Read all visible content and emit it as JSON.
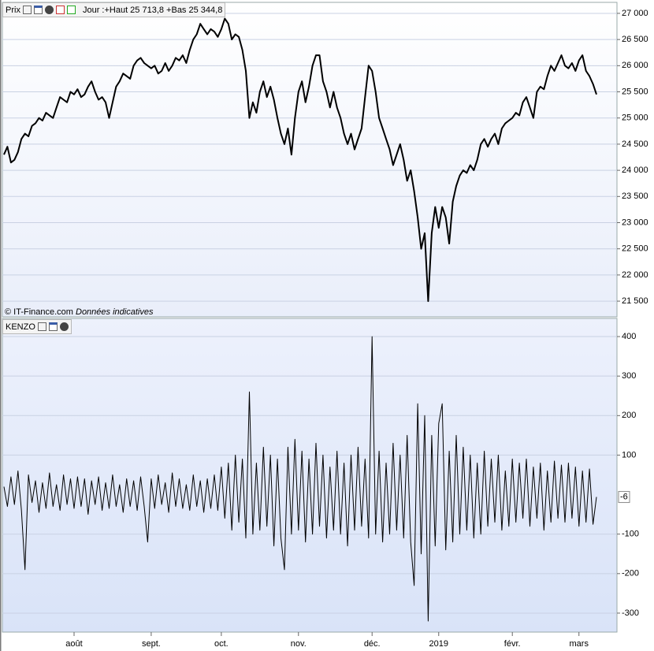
{
  "chart_data": [
    {
      "type": "line",
      "title": "Prix",
      "subtitle": "Jour :+Haut 25 713,8 +Bas 25 344,8",
      "annotations": [
        "© IT-Finance.com",
        "Données indicatives"
      ],
      "ylim": [
        21200,
        27210
      ],
      "yticks": [
        {
          "value": 27000,
          "label": "27 000"
        },
        {
          "value": 26500,
          "label": "26 500"
        },
        {
          "value": 26000,
          "label": "26 000"
        },
        {
          "value": 25500,
          "label": "25 500"
        },
        {
          "value": 25000,
          "label": "25 000"
        },
        {
          "value": 24500,
          "label": "24 500"
        },
        {
          "value": 24000,
          "label": "24 000"
        },
        {
          "value": 23500,
          "label": "23 500"
        },
        {
          "value": 23000,
          "label": "23 000"
        },
        {
          "value": 22500,
          "label": "22 500"
        },
        {
          "value": 22000,
          "label": "22 000"
        },
        {
          "value": 21500,
          "label": "21 500"
        }
      ],
      "grid": true,
      "series": [
        {
          "color": "#000000",
          "values": [
            24300,
            24450,
            24150,
            24200,
            24350,
            24600,
            24700,
            24650,
            24850,
            24900,
            25000,
            24950,
            25100,
            25050,
            25000,
            25200,
            25400,
            25350,
            25300,
            25500,
            25450,
            25550,
            25400,
            25450,
            25600,
            25700,
            25500,
            25350,
            25400,
            25300,
            25000,
            25300,
            25600,
            25700,
            25850,
            25800,
            25750,
            26000,
            26100,
            26150,
            26050,
            26000,
            25950,
            26000,
            25850,
            25900,
            26050,
            25900,
            26000,
            26150,
            26100,
            26200,
            26050,
            26300,
            26500,
            26600,
            26800,
            26700,
            26600,
            26700,
            26650,
            26550,
            26700,
            26900,
            26800,
            26500,
            26600,
            26550,
            26300,
            25900,
            25000,
            25300,
            25100,
            25500,
            25700,
            25400,
            25600,
            25350,
            25000,
            24700,
            24500,
            24800,
            24300,
            25000,
            25500,
            25700,
            25300,
            25600,
            26000,
            26200,
            26200,
            25700,
            25500,
            25200,
            25500,
            25200,
            25000,
            24700,
            24500,
            24700,
            24400,
            24600,
            24800,
            25400,
            26000,
            25900,
            25500,
            25000,
            24800,
            24600,
            24400,
            24100,
            24300,
            24500,
            24200,
            23800,
            24000,
            23600,
            23100,
            22500,
            22800,
            21500,
            22800,
            23300,
            22900,
            23300,
            23100,
            22600,
            23400,
            23700,
            23900,
            24000,
            23950,
            24100,
            24000,
            24200,
            24500,
            24600,
            24450,
            24600,
            24700,
            24500,
            24800,
            24900,
            24950,
            25000,
            25100,
            25050,
            25300,
            25400,
            25200,
            25000,
            25500,
            25600,
            25550,
            25800,
            26000,
            25900,
            26050,
            26200,
            26000,
            25950,
            26050,
            25900,
            26100,
            26200,
            25900,
            25800,
            25650,
            25450
          ]
        }
      ]
    },
    {
      "type": "line",
      "title": "KENZO",
      "ylim": [
        -348,
        446
      ],
      "yticks": [
        400,
        300,
        200,
        100,
        -100,
        -200,
        -300
      ],
      "grid": true,
      "categories": [
        null,
        null,
        null,
        null,
        null,
        null,
        null,
        null,
        null,
        null,
        null,
        null,
        null,
        null,
        null,
        null,
        null,
        null,
        null,
        null,
        "août",
        null,
        null,
        null,
        null,
        null,
        null,
        null,
        null,
        null,
        null,
        null,
        null,
        null,
        null,
        null,
        null,
        null,
        null,
        null,
        null,
        null,
        "sept.",
        null,
        null,
        null,
        null,
        null,
        null,
        null,
        null,
        null,
        null,
        null,
        null,
        null,
        null,
        null,
        null,
        null,
        null,
        null,
        "oct.",
        null,
        null,
        null,
        null,
        null,
        null,
        null,
        null,
        null,
        null,
        null,
        null,
        null,
        null,
        null,
        null,
        null,
        null,
        null,
        null,
        null,
        "nov.",
        null,
        null,
        null,
        null,
        null,
        null,
        null,
        null,
        null,
        null,
        null,
        null,
        null,
        null,
        null,
        null,
        null,
        null,
        null,
        null,
        "déc.",
        null,
        null,
        null,
        null,
        null,
        null,
        null,
        null,
        null,
        null,
        null,
        null,
        null,
        null,
        null,
        null,
        null,
        null,
        "2019",
        null,
        null,
        null,
        null,
        null,
        null,
        null,
        null,
        null,
        null,
        null,
        null,
        null,
        null,
        null,
        null,
        null,
        null,
        null,
        null,
        "févr.",
        null,
        null,
        null,
        null,
        null,
        null,
        null,
        null,
        null,
        null,
        null,
        null,
        null,
        null,
        null,
        null,
        null,
        null,
        "mars",
        null,
        null,
        null,
        null,
        null
      ],
      "series": [
        {
          "color": "#000000",
          "values": [
            20,
            -30,
            45,
            -25,
            60,
            -40,
            -190,
            50,
            -20,
            35,
            -45,
            30,
            -35,
            55,
            -30,
            25,
            -40,
            50,
            -25,
            40,
            -35,
            45,
            -30,
            40,
            -50,
            35,
            -25,
            45,
            -40,
            30,
            -35,
            50,
            -30,
            25,
            -45,
            40,
            -30,
            35,
            -40,
            45,
            -30,
            -120,
            40,
            -35,
            50,
            -25,
            30,
            -45,
            55,
            -30,
            40,
            -35,
            25,
            -40,
            50,
            -30,
            35,
            -45,
            40,
            -35,
            50,
            -40,
            70,
            -60,
            80,
            -90,
            100,
            -70,
            90,
            -110,
            260,
            -100,
            80,
            -90,
            120,
            -80,
            100,
            -130,
            90,
            -110,
            -190,
            120,
            -100,
            140,
            -90,
            110,
            -120,
            90,
            -100,
            130,
            -80,
            100,
            -110,
            70,
            -90,
            110,
            -100,
            80,
            -130,
            100,
            -90,
            120,
            -80,
            90,
            -110,
            400,
            -100,
            110,
            -120,
            80,
            -100,
            130,
            -90,
            100,
            -110,
            150,
            -120,
            -230,
            230,
            -150,
            200,
            -320,
            150,
            -130,
            180,
            230,
            -140,
            110,
            -120,
            150,
            -100,
            120,
            -90,
            100,
            -110,
            80,
            -100,
            110,
            -80,
            90,
            -70,
            100,
            -90,
            60,
            -80,
            90,
            -70,
            80,
            -60,
            90,
            -80,
            70,
            -60,
            80,
            -90,
            60,
            -70,
            85,
            -60,
            75,
            -70,
            80,
            -60,
            70,
            -80,
            60,
            -70,
            65,
            -75,
            -6
          ]
        }
      ]
    }
  ]
}
